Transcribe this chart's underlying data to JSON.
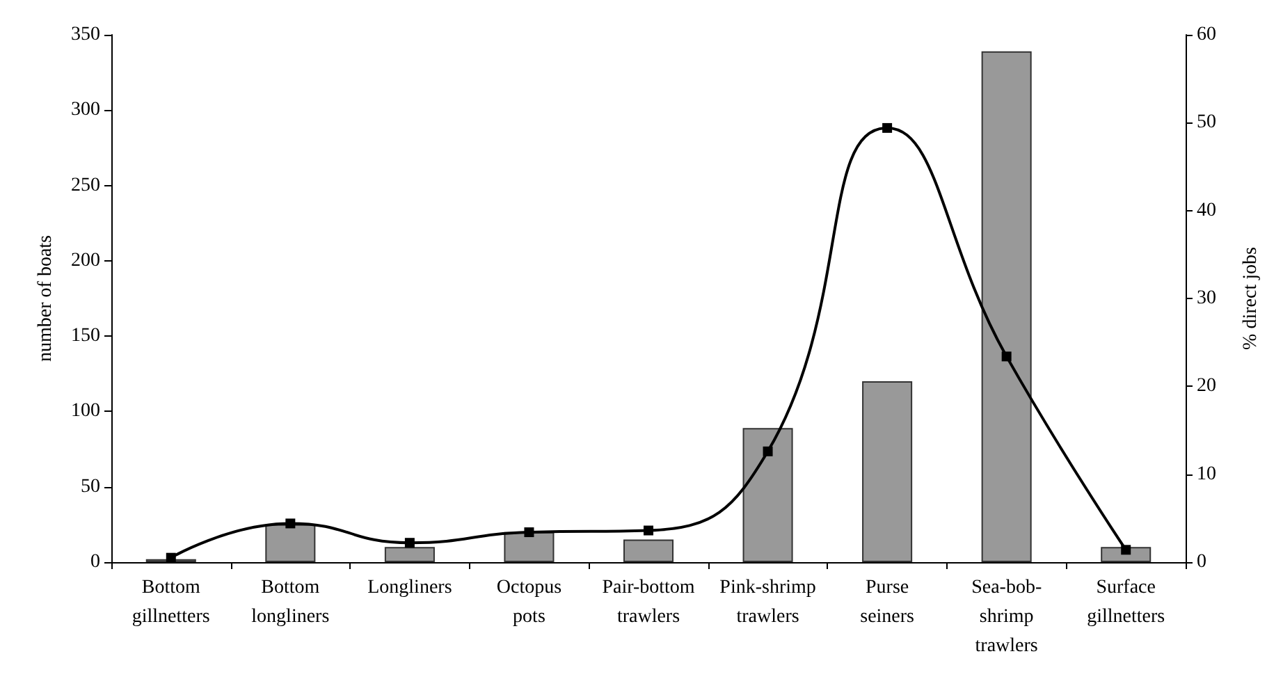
{
  "chart_data": {
    "type": "bar",
    "categories": [
      "Bottom gillnetters",
      "Bottom longliners",
      "Longliners",
      "Octopus pots",
      "Pair-bottom trawlers",
      "Pink-shrimp trawlers",
      "Purse seiners",
      "Sea-bob-shrimp trawlers",
      "Surface gillnetters"
    ],
    "series": [
      {
        "color": "#999999",
        "values": [
          2,
          25,
          10,
          20,
          15,
          89,
          120,
          339,
          10
        ]
      },
      {
        "type": "line",
        "axis": "y2",
        "color": "#000000",
        "values": [
          0.5,
          4.4,
          2.2,
          3.4,
          3.6,
          12.6,
          49.4,
          23.4,
          1.4
        ]
      }
    ],
    "ylabel": "number of boats",
    "y2label": "% direct jobs",
    "ylim": [
      0,
      350
    ],
    "yticks": [
      0,
      50,
      100,
      150,
      200,
      250,
      300,
      350
    ],
    "y2lim": [
      0,
      60
    ],
    "y2ticks": [
      0,
      10,
      20,
      30,
      40,
      50,
      60
    ],
    "grid": false,
    "marker": "square",
    "line_style": "solid"
  }
}
